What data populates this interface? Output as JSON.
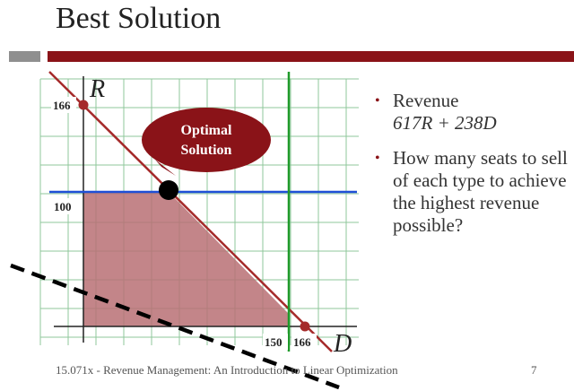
{
  "slide": {
    "title": "Best Solution",
    "footer": "15.071x - Revenue Management: An Introduction to Linear Optimization",
    "page_number": "7"
  },
  "bullets": [
    {
      "text": "Revenue",
      "formula": "617R + 238D"
    },
    {
      "text": "How many seats to sell of each type to achieve the highest revenue possible?"
    }
  ],
  "diagram": {
    "axis_y_label": "R",
    "axis_x_label": "D",
    "tick_r_166": "166",
    "tick_r_100": "100",
    "tick_d_150": "150",
    "tick_d_166": "166",
    "callout_text": "Optimal Solution",
    "colors": {
      "constraint_total": "#a52a2a",
      "constraint_r": "#1f4fd6",
      "constraint_d": "#1f9a2a",
      "feasible_fill": "#b87074",
      "callout": "#8a1318",
      "objective": "#000000",
      "grid": "#8fc79b"
    }
  }
}
